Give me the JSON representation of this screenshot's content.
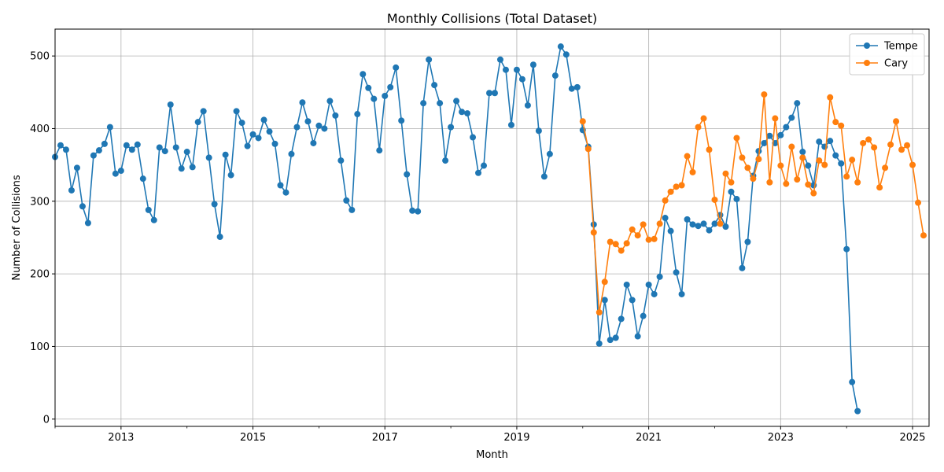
{
  "chart_data": {
    "type": "line",
    "title": "Monthly Collisions (Total Dataset)",
    "xlabel": "Month",
    "ylabel": "Number of Collisions",
    "x_start": "2012-01",
    "x_end": "2025-04",
    "xlim": [
      "2012-01",
      "2025-04"
    ],
    "ylim": [
      -10,
      537
    ],
    "x_tick_labels": [
      "2013",
      "2015",
      "2017",
      "2019",
      "2021",
      "2023",
      "2025"
    ],
    "x_tick_values": [
      "2013-01",
      "2015-01",
      "2017-01",
      "2019-01",
      "2021-01",
      "2023-01",
      "2025-01"
    ],
    "y_ticks": [
      0,
      100,
      200,
      300,
      400,
      500
    ],
    "grid": true,
    "legend_position": "top-right",
    "series": [
      {
        "name": "Tempe",
        "color": "#1f77b4",
        "start": "2012-01",
        "values": [
          361,
          377,
          371,
          315,
          346,
          293,
          270,
          363,
          370,
          379,
          402,
          338,
          342,
          377,
          371,
          378,
          331,
          288,
          274,
          374,
          369,
          433,
          374,
          345,
          368,
          347,
          409,
          424,
          360,
          296,
          251,
          364,
          336,
          424,
          408,
          376,
          392,
          387,
          412,
          396,
          379,
          322,
          312,
          365,
          402,
          436,
          410,
          380,
          404,
          400,
          438,
          418,
          356,
          301,
          288,
          420,
          475,
          456,
          441,
          370,
          445,
          457,
          484,
          411,
          337,
          287,
          286,
          435,
          495,
          460,
          435,
          356,
          402,
          438,
          423,
          421,
          388,
          339,
          349,
          449,
          449,
          495,
          481,
          405,
          481,
          468,
          432,
          488,
          397,
          334,
          365,
          473,
          513,
          502,
          455,
          457,
          398,
          375,
          268,
          104,
          164,
          109,
          112,
          138,
          185,
          164,
          114,
          142,
          185,
          172,
          196,
          277,
          259,
          202,
          172,
          275,
          268,
          266,
          269,
          260,
          269,
          281,
          265,
          313,
          303,
          208,
          244,
          335,
          369,
          380,
          390,
          380,
          391,
          402,
          415,
          435,
          368,
          349,
          322,
          382,
          375,
          383,
          363,
          352,
          234,
          51,
          11
        ]
      },
      {
        "name": "Cary",
        "color": "#ff7f0e",
        "start": "2020-01",
        "values": [
          410,
          372,
          257,
          147,
          189,
          244,
          241,
          232,
          242,
          261,
          253,
          268,
          247,
          248,
          269,
          301,
          313,
          320,
          322,
          362,
          340,
          402,
          414,
          371,
          302,
          269,
          338,
          326,
          387,
          360,
          346,
          331,
          358,
          447,
          326,
          414,
          349,
          324,
          375,
          330,
          360,
          323,
          311,
          356,
          350,
          443,
          409,
          404,
          334,
          357,
          326,
          380,
          385,
          374,
          319,
          346,
          378,
          410,
          371,
          377,
          350,
          298,
          253
        ]
      }
    ]
  }
}
